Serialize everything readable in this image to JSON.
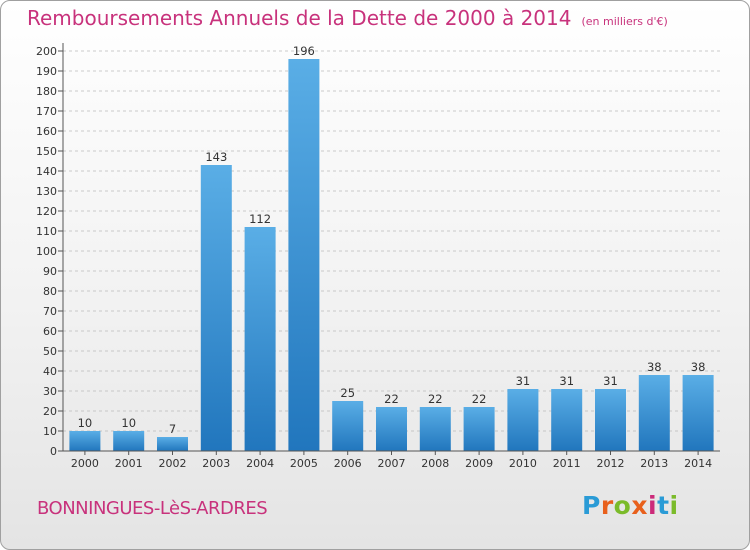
{
  "title": "Remboursements Annuels de la Dette de 2000 à 2014",
  "subtitle": "(en milliers d'€)",
  "commune": "BONNINGUES-LèS-ARDRES",
  "logo": {
    "letters": [
      "P",
      "r",
      "o",
      "x",
      "i",
      "t",
      "i"
    ],
    "colors": [
      "#2a9bd6",
      "#e8601c",
      "#7bbb2a",
      "#e8601c",
      "#cc2a7a",
      "#2a9bd6",
      "#7bbb2a"
    ]
  },
  "colors": {
    "accent": "#c8327c",
    "bar_light": "#5aaee6",
    "bar_dark": "#2176bd",
    "grid": "#bbbbbb"
  },
  "chart_data": {
    "type": "bar",
    "categories": [
      "2000",
      "2001",
      "2002",
      "2003",
      "2004",
      "2005",
      "2006",
      "2007",
      "2008",
      "2009",
      "2010",
      "2011",
      "2012",
      "2013",
      "2014"
    ],
    "values": [
      10,
      10,
      7,
      143,
      112,
      196,
      25,
      22,
      22,
      22,
      31,
      31,
      31,
      38,
      38
    ],
    "ylim": [
      0,
      200
    ],
    "ytick_step": 10,
    "grid": true,
    "data_labels": true
  }
}
